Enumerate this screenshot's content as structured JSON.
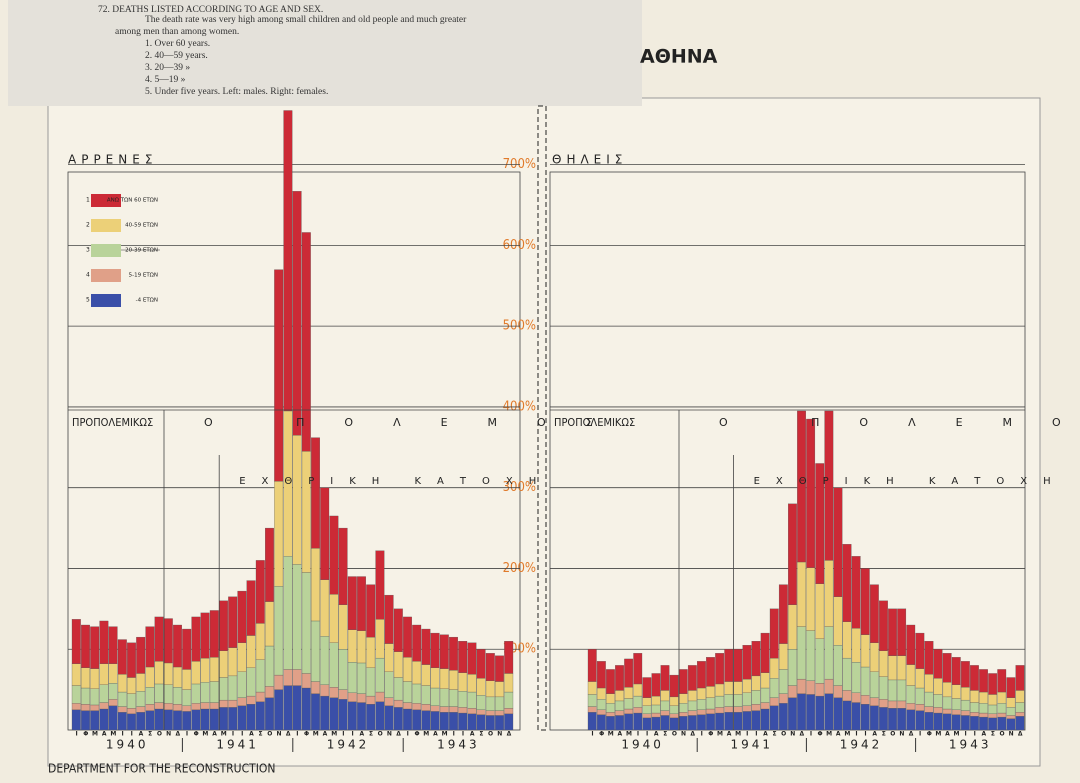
{
  "caption": {
    "heading": "72. DEATHS LISTED ACCORDING TO AGE AND SEX.",
    "lines": [
      "The death rate was very high among small children and old people and much greater",
      "among men than among women.",
      "1. Over 60 years.",
      "2. 40—59 years.",
      "3. 20—39 »",
      "4. 5—19 »",
      "5. Under five years. Left: males. Right: females."
    ]
  },
  "title": "ΑΘΗΝΑ",
  "footer": "DEPARTMENT FOR THE RECONSTRUCTION",
  "chart_data": [
    {
      "type": "stacked-bar",
      "title": "ΑΡΡΕΝΕΣ",
      "categories": [
        "Ι",
        "Φ",
        "Μ",
        "Α",
        "Μ",
        "Ι",
        "Ι",
        "Α",
        "Σ",
        "Ο",
        "Ν",
        "Δ",
        "Ι",
        "Φ",
        "Μ",
        "Α",
        "Μ",
        "Ι",
        "Ι",
        "Α",
        "Σ",
        "Ο",
        "Ν",
        "Δ",
        "Ι",
        "Φ",
        "Μ",
        "Α",
        "Μ",
        "Ι",
        "Ι",
        "Α",
        "Σ",
        "Ο",
        "Ν",
        "Δ",
        "Ι",
        "Φ",
        "Μ",
        "Α",
        "Μ",
        "Ι",
        "Ι",
        "Α",
        "Σ",
        "Ο",
        "Ν",
        "Δ"
      ],
      "years": [
        "1940",
        "1941",
        "1942",
        "1943"
      ],
      "annotations": [
        "ΠΡΟΠΟΛΕΜΙΚΩΣ",
        "Ο ΠΟΛΕΜΟΣ",
        "ΕΧΘΡΙΚΗ ΚΑΤΟΧΗ"
      ],
      "ylim": [
        0,
        780
      ],
      "yticks": [
        {
          "value": 100,
          "label": "100%"
        },
        {
          "value": 200,
          "label": "200%"
        },
        {
          "value": 300,
          "label": "300%"
        },
        {
          "value": 400,
          "label": "400%"
        },
        {
          "value": 500,
          "label": "500%"
        },
        {
          "value": 600,
          "label": "600%"
        },
        {
          "value": 700,
          "label": "700%"
        }
      ],
      "grid": true,
      "series": [
        {
          "name": "-4 ΕΤΩΝ",
          "key": "5",
          "color": "#3a4fa8",
          "values": [
            25,
            24,
            24,
            26,
            30,
            22,
            20,
            22,
            24,
            26,
            25,
            24,
            23,
            25,
            26,
            26,
            28,
            28,
            30,
            32,
            35,
            40,
            50,
            55,
            55,
            52,
            45,
            42,
            40,
            38,
            35,
            34,
            32,
            35,
            30,
            28,
            26,
            25,
            24,
            23,
            22,
            22,
            21,
            20,
            19,
            18,
            18,
            20
          ]
        },
        {
          "name": "5-19 ΕΤΩΝ",
          "key": "4",
          "color": "#e0a088",
          "values": [
            8,
            8,
            7,
            8,
            8,
            7,
            7,
            7,
            8,
            8,
            8,
            8,
            7,
            8,
            8,
            8,
            9,
            9,
            10,
            10,
            12,
            14,
            18,
            20,
            20,
            18,
            15,
            14,
            13,
            12,
            11,
            11,
            10,
            12,
            10,
            9,
            8,
            8,
            8,
            7,
            7,
            7,
            7,
            7,
            6,
            6,
            6,
            7
          ]
        },
        {
          "name": "20-39 ΕΤΩΝ",
          "key": "3",
          "color": "#b9d39a",
          "values": [
            22,
            20,
            20,
            22,
            20,
            18,
            18,
            19,
            21,
            23,
            23,
            21,
            20,
            24,
            25,
            26,
            28,
            30,
            32,
            35,
            40,
            50,
            110,
            140,
            130,
            125,
            75,
            60,
            55,
            50,
            38,
            38,
            35,
            42,
            32,
            28,
            26,
            24,
            23,
            22,
            22,
            21,
            20,
            20,
            18,
            17,
            17,
            20
          ]
        },
        {
          "name": "40-59 ΕΤΩΝ",
          "key": "2",
          "color": "#ecd078",
          "values": [
            27,
            25,
            25,
            26,
            24,
            22,
            20,
            22,
            25,
            28,
            27,
            25,
            25,
            28,
            30,
            30,
            33,
            35,
            36,
            40,
            45,
            55,
            130,
            180,
            160,
            150,
            90,
            70,
            60,
            55,
            40,
            40,
            38,
            48,
            35,
            32,
            30,
            28,
            26,
            25,
            25,
            24,
            23,
            22,
            21,
            20,
            19,
            23
          ]
        },
        {
          "name": "ΑΝΩ ΤΩΝ 60 ΕΤΩΝ",
          "key": "1",
          "color": "#cc2a36",
          "values": [
            55,
            53,
            52,
            53,
            46,
            43,
            43,
            45,
            50,
            55,
            55,
            52,
            50,
            55,
            56,
            58,
            62,
            63,
            64,
            68,
            78,
            91,
            262,
            372,
            302,
            271,
            137,
            114,
            97,
            95,
            66,
            67,
            65,
            85,
            60,
            53,
            50,
            45,
            44,
            43,
            42,
            41,
            39,
            39,
            36,
            34,
            32,
            40
          ]
        }
      ]
    },
    {
      "type": "stacked-bar",
      "title": "ΘΗΛΕΙΣ",
      "categories": [
        "Ι",
        "Φ",
        "Μ",
        "Α",
        "Μ",
        "Ι",
        "Ι",
        "Α",
        "Σ",
        "Ο",
        "Ν",
        "Δ",
        "Ι",
        "Φ",
        "Μ",
        "Α",
        "Μ",
        "Ι",
        "Ι",
        "Α",
        "Σ",
        "Ο",
        "Ν",
        "Δ",
        "Ι",
        "Φ",
        "Μ",
        "Α",
        "Μ",
        "Ι",
        "Ι",
        "Α",
        "Σ",
        "Ο",
        "Ν",
        "Δ",
        "Ι",
        "Φ",
        "Μ",
        "Α",
        "Μ",
        "Ι",
        "Ι",
        "Α",
        "Σ",
        "Ο",
        "Ν",
        "Δ"
      ],
      "years": [
        "1940",
        "1941",
        "1942",
        "1943"
      ],
      "annotations": [
        "ΠΡΟΠΟΛΕΜΙΚΩΣ",
        "Ο ΠΟΛΕΜΟΣ",
        "ΕΧΘΡΙΚΗ ΚΑΤΟΧΗ"
      ],
      "ylim": [
        0,
        780
      ],
      "series": [
        {
          "color": "#3a4fa8",
          "values": [
            22,
            19,
            17,
            18,
            20,
            21,
            15,
            16,
            18,
            15,
            17,
            18,
            19,
            20,
            21,
            22,
            22,
            23,
            24,
            26,
            30,
            33,
            40,
            45,
            44,
            42,
            45,
            40,
            36,
            34,
            32,
            30,
            28,
            27,
            27,
            25,
            24,
            22,
            21,
            20,
            19,
            18,
            17,
            16,
            15,
            16,
            14,
            17
          ]
        },
        {
          "color": "#e0a088",
          "values": [
            7,
            6,
            5,
            6,
            6,
            7,
            5,
            5,
            6,
            5,
            5,
            6,
            6,
            6,
            7,
            7,
            7,
            7,
            8,
            8,
            10,
            12,
            15,
            18,
            17,
            16,
            18,
            15,
            13,
            12,
            11,
            10,
            10,
            9,
            9,
            8,
            8,
            7,
            7,
            6,
            6,
            6,
            5,
            5,
            5,
            5,
            4,
            5
          ]
        },
        {
          "color": "#b9d39a",
          "values": [
            15,
            13,
            11,
            12,
            13,
            14,
            10,
            10,
            12,
            10,
            11,
            12,
            13,
            14,
            14,
            15,
            15,
            16,
            17,
            18,
            24,
            30,
            45,
            65,
            62,
            55,
            65,
            50,
            40,
            38,
            35,
            32,
            28,
            26,
            26,
            22,
            20,
            18,
            16,
            15,
            14,
            13,
            12,
            12,
            11,
            12,
            10,
            12
          ]
        },
        {
          "color": "#ecd078",
          "values": [
            16,
            14,
            12,
            13,
            14,
            15,
            10,
            11,
            13,
            11,
            12,
            13,
            14,
            14,
            15,
            16,
            16,
            17,
            18,
            19,
            25,
            32,
            55,
            80,
            78,
            68,
            82,
            60,
            45,
            42,
            40,
            36,
            32,
            30,
            30,
            26,
            24,
            22,
            20,
            18,
            17,
            16,
            15,
            14,
            13,
            14,
            12,
            15
          ]
        },
        {
          "color": "#cc2a36",
          "values": [
            40,
            33,
            30,
            31,
            35,
            38,
            25,
            28,
            31,
            27,
            30,
            31,
            33,
            36,
            38,
            40,
            40,
            42,
            43,
            49,
            61,
            73,
            125,
            187,
            184,
            149,
            185,
            135,
            96,
            89,
            82,
            72,
            62,
            58,
            58,
            49,
            44,
            41,
            36,
            36,
            34,
            32,
            31,
            28,
            26,
            28,
            25,
            31
          ]
        }
      ]
    }
  ]
}
